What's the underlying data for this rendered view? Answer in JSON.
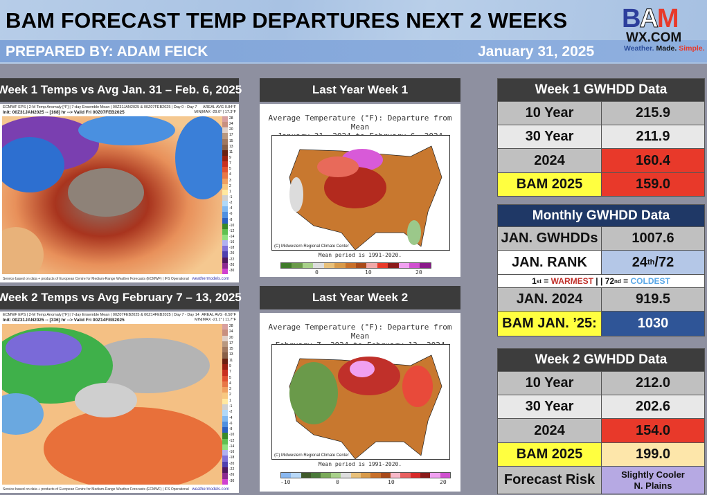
{
  "header": {
    "title": "BAM FORECAST TEMP DEPARTURES NEXT 2 WEEKS",
    "prepared_by": "PREPARED BY: ADAM FEICK",
    "date": "January 31, 2025",
    "logo": {
      "letters": "BAM",
      "domain": "WX.COM",
      "tagline": [
        "Weather.",
        "Made.",
        "Simple."
      ]
    }
  },
  "left_panels": [
    {
      "title": "Week 1 Temps vs Avg  Jan. 31 – Feb. 6, 2025",
      "map_header": "ECMWF EPS | 2-M Temp Anomaly [°F] | 7-day Ensemble Mean | 00Z31JAN2025 & 00Z07FEB2025 | Day 0 - Day 7",
      "map_init": "Init: 00Z31JAN2025 -- [168] hr --> Valid Fri 00Z07FEB2025",
      "map_stats": [
        "AREAL AVG 0.84°F",
        "MIN|MAX -29.0° | 17.3°F"
      ],
      "footer": "Service based on data + products of European Centre for Medium-Range Weather Forecasts (ECMWF) | IFS Operational",
      "watermark": "weathermodels.com"
    },
    {
      "title": "Week 2 Temps vs Avg  February 7 – 13, 2025",
      "map_header": "ECMWF EPS | 2-M Temp Anomaly [°F] | 7-day Ensemble Mean | 00Z07FEB2025 & 00Z14FEB2025 | Day 7 - Day 14",
      "map_init": "Init: 00Z31JAN2025 -- [336] hr --> Valid Fri 00Z14FEB2025",
      "map_stats": [
        "AREAL AVG -0.50°F",
        "MIN|MAX -21.1° | 11.7°F"
      ],
      "footer": "Service based on data + products of European Centre for Medium-Range Weather Forecasts (ECMWF) | IFS Operational",
      "watermark": "weathermodels.com"
    }
  ],
  "colorbar_labels": [
    "28",
    "24",
    "20",
    "17",
    "15",
    "13",
    "11",
    "9",
    "7",
    "5",
    "4",
    "3",
    "2",
    "1",
    "-1",
    "-2",
    "-4",
    "-6",
    "-8",
    "-10",
    "-12",
    "-14",
    "-16",
    "-18",
    "-20",
    "-22",
    "-26",
    "-30"
  ],
  "middle_panels": [
    {
      "title": "Last Year Week 1",
      "map_title": [
        "Average Temperature (°F): Departure from Mean",
        "January 31, 2024 to February 6, 2024"
      ],
      "credit": "(C) Midwestern Regional Climate Center",
      "mean_period": "Mean period is 1991-2020.",
      "legend_ticks": [
        "0",
        "10",
        "20"
      ]
    },
    {
      "title": "Last Year Week 2",
      "map_title": [
        "Average Temperature (°F): Departure from Mean",
        "February 7, 2024 to February 13, 2024"
      ],
      "credit": "(C) Midwestern Regional Climate Center",
      "mean_period": "Mean period is 1991-2020.",
      "legend_ticks": [
        "-10",
        "0",
        "10",
        "20"
      ]
    }
  ],
  "week1": {
    "title": "Week 1 GWHDD Data",
    "rows": [
      [
        "10 Year",
        "215.9"
      ],
      [
        "30 Year",
        "211.9"
      ],
      [
        "2024",
        "160.4"
      ],
      [
        "BAM 2025",
        "159.0"
      ]
    ]
  },
  "monthly": {
    "title": "Monthly GWHDD Data",
    "rows": [
      [
        "JAN. GWHDDs",
        "1007.6"
      ]
    ],
    "rank_label": "JAN. RANK",
    "rank_num": "24",
    "rank_sup": "th",
    "rank_total": "/72",
    "note": {
      "first": "1",
      "first_sup": "st",
      "eq1": " = ",
      "warmest": "WARMEST",
      "sep": " | | ",
      "last": "72",
      "last_sup": "nd",
      "eq2": " = ",
      "coldest": "COLDEST"
    },
    "rows2": [
      [
        "JAN. 2024",
        "919.5"
      ],
      [
        "BAM JAN. ’25:",
        "1030"
      ]
    ]
  },
  "week2": {
    "title": "Week 2 GWHDD Data",
    "rows": [
      [
        "10 Year",
        "212.0"
      ],
      [
        "30 Year",
        "202.6"
      ],
      [
        "2024",
        "154.0"
      ],
      [
        "BAM 2025",
        "199.0"
      ],
      [
        "Forecast Risk",
        "Slightly Cooler  N. Plains"
      ]
    ]
  },
  "colors": {
    "header_bg": "#a8c2e3",
    "subbar": "#7fa3d8",
    "table_dark": "#3d3d3d",
    "navy": "#1f3866",
    "red": "#e8392a",
    "yellow": "#ffff40",
    "peach": "#fde6aa",
    "lavender": "#b6a9e3",
    "light_blue": "#b4c7e7",
    "bam_blue": "#2f5597",
    "warmest": "#c0302a",
    "coldest": "#5aa8e8"
  }
}
